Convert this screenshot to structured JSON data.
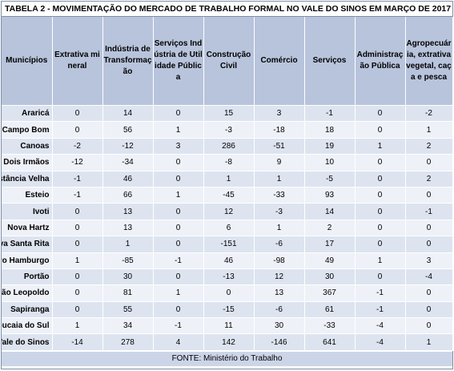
{
  "title": "TABELA 2 - MOVIMENTAÇÃO DO MERCADO DE TRABALHO FORMAL NO VALE DO SINOS EM MARÇO DE 2017",
  "headers": [
    "Municípios",
    "Extrativa mineral",
    "Indústria de Transformação",
    "Serviços Indústria de Utilidade Pública",
    "Construção Civil",
    "Comércio",
    "Serviços",
    "Administração Pública",
    "Agropecuária, extrativa vegetal, caça e pesca"
  ],
  "rows": [
    [
      "Araricá",
      "0",
      "14",
      "0",
      "15",
      "3",
      "-1",
      "0",
      "-2"
    ],
    [
      "Campo Bom",
      "0",
      "56",
      "1",
      "-3",
      "-18",
      "18",
      "0",
      "1"
    ],
    [
      "Canoas",
      "-2",
      "-12",
      "3",
      "286",
      "-51",
      "19",
      "1",
      "2"
    ],
    [
      "Dois Irmãos",
      "-12",
      "-34",
      "0",
      "-8",
      "9",
      "10",
      "0",
      "0"
    ],
    [
      "Estância Velha",
      "-1",
      "46",
      "0",
      "1",
      "1",
      "-5",
      "0",
      "2"
    ],
    [
      "Esteio",
      "-1",
      "66",
      "1",
      "-45",
      "-33",
      "93",
      "0",
      "0"
    ],
    [
      "Ivoti",
      "0",
      "13",
      "0",
      "12",
      "-3",
      "14",
      "0",
      "-1"
    ],
    [
      "Nova Hartz",
      "0",
      "13",
      "0",
      "6",
      "1",
      "2",
      "0",
      "0"
    ],
    [
      "Nova Santa Rita",
      "0",
      "1",
      "0",
      "-151",
      "-6",
      "17",
      "0",
      "0"
    ],
    [
      "Novo Hamburgo",
      "1",
      "-85",
      "-1",
      "46",
      "-98",
      "49",
      "1",
      "3"
    ],
    [
      "Portão",
      "0",
      "30",
      "0",
      "-13",
      "12",
      "30",
      "0",
      "-4"
    ],
    [
      "São Leopoldo",
      "0",
      "81",
      "1",
      "0",
      "13",
      "367",
      "-1",
      "0"
    ],
    [
      "Sapiranga",
      "0",
      "55",
      "0",
      "-15",
      "-6",
      "61",
      "-1",
      "0"
    ],
    [
      "Sapucaia do Sul",
      "1",
      "34",
      "-1",
      "11",
      "30",
      "-33",
      "-4",
      "0"
    ],
    [
      "Vale do Sinos",
      "-14",
      "278",
      "4",
      "142",
      "-146",
      "641",
      "-4",
      "1"
    ]
  ],
  "footer": "FONTE: Ministério do Trabalho"
}
